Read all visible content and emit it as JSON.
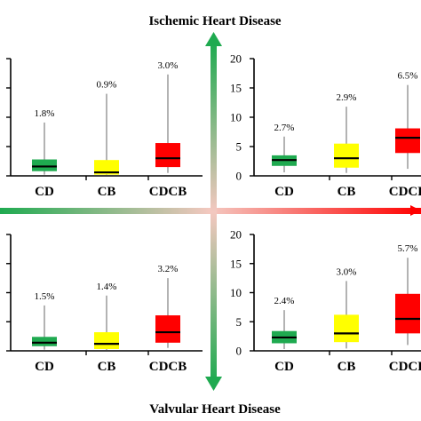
{
  "top_title": "Ischemic Heart Disease",
  "bottom_title": "Valvular Heart Disease",
  "colors": {
    "CD": "#1faa50",
    "CB": "#ffff00",
    "CDCB": "#ff0000",
    "median": "#000000",
    "whisker": "#808080",
    "axis": "#000000",
    "arrow_green": "#1faa50",
    "arrow_red": "#ff0000",
    "arrow_mid": "#f4c8c0"
  },
  "chart_data": [
    {
      "type": "box",
      "panel": "top-left",
      "categories": [
        "CD",
        "CB",
        "CDCB"
      ],
      "ylim": [
        0,
        20
      ],
      "yticks": [],
      "boxes": [
        {
          "name": "CD",
          "min": 0.2,
          "q1": 0.8,
          "median": 1.6,
          "q3": 2.8,
          "max": 9.1,
          "label": "1.8%"
        },
        {
          "name": "CB",
          "min": 0.1,
          "q1": 0.2,
          "median": 0.6,
          "q3": 2.7,
          "max": 14.0,
          "label": "0.9%"
        },
        {
          "name": "CDCB",
          "min": 0.5,
          "q1": 1.5,
          "median": 3.0,
          "q3": 5.6,
          "max": 17.3,
          "label": "3.0%"
        }
      ]
    },
    {
      "type": "box",
      "panel": "top-right",
      "categories": [
        "CD",
        "CB",
        "CDCB"
      ],
      "ylim": [
        0,
        20
      ],
      "yticks": [
        "0",
        "5",
        "10",
        "15",
        "20"
      ],
      "boxes": [
        {
          "name": "CD",
          "min": 0.6,
          "q1": 1.7,
          "median": 2.7,
          "q3": 3.5,
          "max": 6.7,
          "label": "2.7%"
        },
        {
          "name": "CB",
          "min": 0.5,
          "q1": 1.4,
          "median": 3.0,
          "q3": 5.5,
          "max": 11.8,
          "label": "2.9%"
        },
        {
          "name": "CDCB",
          "min": 1.2,
          "q1": 3.9,
          "median": 6.5,
          "q3": 8.1,
          "max": 15.5,
          "label": "6.5%"
        }
      ]
    },
    {
      "type": "box",
      "panel": "bottom-left",
      "categories": [
        "CD",
        "CB",
        "CDCB"
      ],
      "ylim": [
        0,
        20
      ],
      "yticks": [],
      "boxes": [
        {
          "name": "CD",
          "min": 0.2,
          "q1": 0.8,
          "median": 1.4,
          "q3": 2.4,
          "max": 7.8,
          "label": "1.5%"
        },
        {
          "name": "CB",
          "min": 0.1,
          "q1": 0.3,
          "median": 1.2,
          "q3": 3.2,
          "max": 9.5,
          "label": "1.4%"
        },
        {
          "name": "CDCB",
          "min": 0.5,
          "q1": 1.4,
          "median": 3.2,
          "q3": 6.1,
          "max": 12.5,
          "label": "3.2%"
        }
      ]
    },
    {
      "type": "box",
      "panel": "bottom-right",
      "categories": [
        "CD",
        "CB",
        "CDCB"
      ],
      "ylim": [
        0,
        20
      ],
      "yticks": [
        "0",
        "5",
        "10",
        "15",
        "20"
      ],
      "boxes": [
        {
          "name": "CD",
          "min": 0.3,
          "q1": 1.3,
          "median": 2.3,
          "q3": 3.4,
          "max": 7.0,
          "label": "2.4%"
        },
        {
          "name": "CB",
          "min": 0.4,
          "q1": 1.5,
          "median": 3.0,
          "q3": 6.2,
          "max": 12.0,
          "label": "3.0%"
        },
        {
          "name": "CDCB",
          "min": 1.0,
          "q1": 3.0,
          "median": 5.5,
          "q3": 9.8,
          "max": 16.0,
          "label": "5.7%"
        }
      ]
    }
  ]
}
